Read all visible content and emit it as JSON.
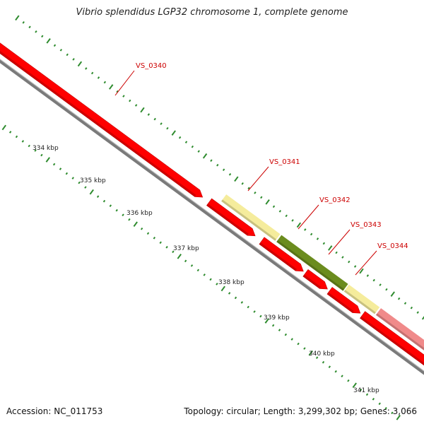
{
  "title": "Vibrio splendidus LGP32 chromosome 1, complete genome",
  "footer": {
    "accession": "Accession: NC_011753",
    "summary": "Topology: circular; Length: 3,299,302 bp; Genes: 3,066"
  },
  "colors": {
    "background": "#ffffff",
    "backbone": "#7a7a7a",
    "gene_red": "#ff0000",
    "gene_red_dark": "#c40000",
    "gene_yellow": "#f5ec9c",
    "gene_olive": "#6b8c1e",
    "gene_pink": "#f08a8a",
    "tick": "#2e8b2e",
    "label_red": "#cc0000"
  },
  "scale_ticks": [
    "334 kbp",
    "335 kbp",
    "336 kbp",
    "337 kbp",
    "338 kbp",
    "339 kbp",
    "340 kbp",
    "341 kbp"
  ],
  "gene_labels": [
    "VS_0340",
    "VS_0341",
    "VS_0342",
    "VS_0343",
    "VS_0344"
  ],
  "genes": [
    {
      "strand": "forward",
      "color": "gene_red",
      "from": 0.0,
      "to": 0.47
    },
    {
      "strand": "forward",
      "color": "gene_red",
      "from": 0.485,
      "to": 0.59
    },
    {
      "strand": "forward",
      "color": "gene_red",
      "from": 0.605,
      "to": 0.7
    },
    {
      "strand": "forward",
      "color": "gene_red",
      "from": 0.705,
      "to": 0.755
    },
    {
      "strand": "forward",
      "color": "gene_red",
      "from": 0.76,
      "to": 0.83
    },
    {
      "strand": "forward",
      "color": "gene_red",
      "from": 0.835,
      "to": 1.0
    },
    {
      "strand": "outer",
      "color": "gene_yellow",
      "from": 0.502,
      "to": 0.625
    },
    {
      "strand": "outer",
      "color": "gene_olive",
      "from": 0.628,
      "to": 0.78
    },
    {
      "strand": "outer",
      "color": "gene_yellow",
      "from": 0.782,
      "to": 0.852
    },
    {
      "strand": "outer",
      "color": "gene_pink",
      "from": 0.855,
      "to": 1.0
    }
  ]
}
